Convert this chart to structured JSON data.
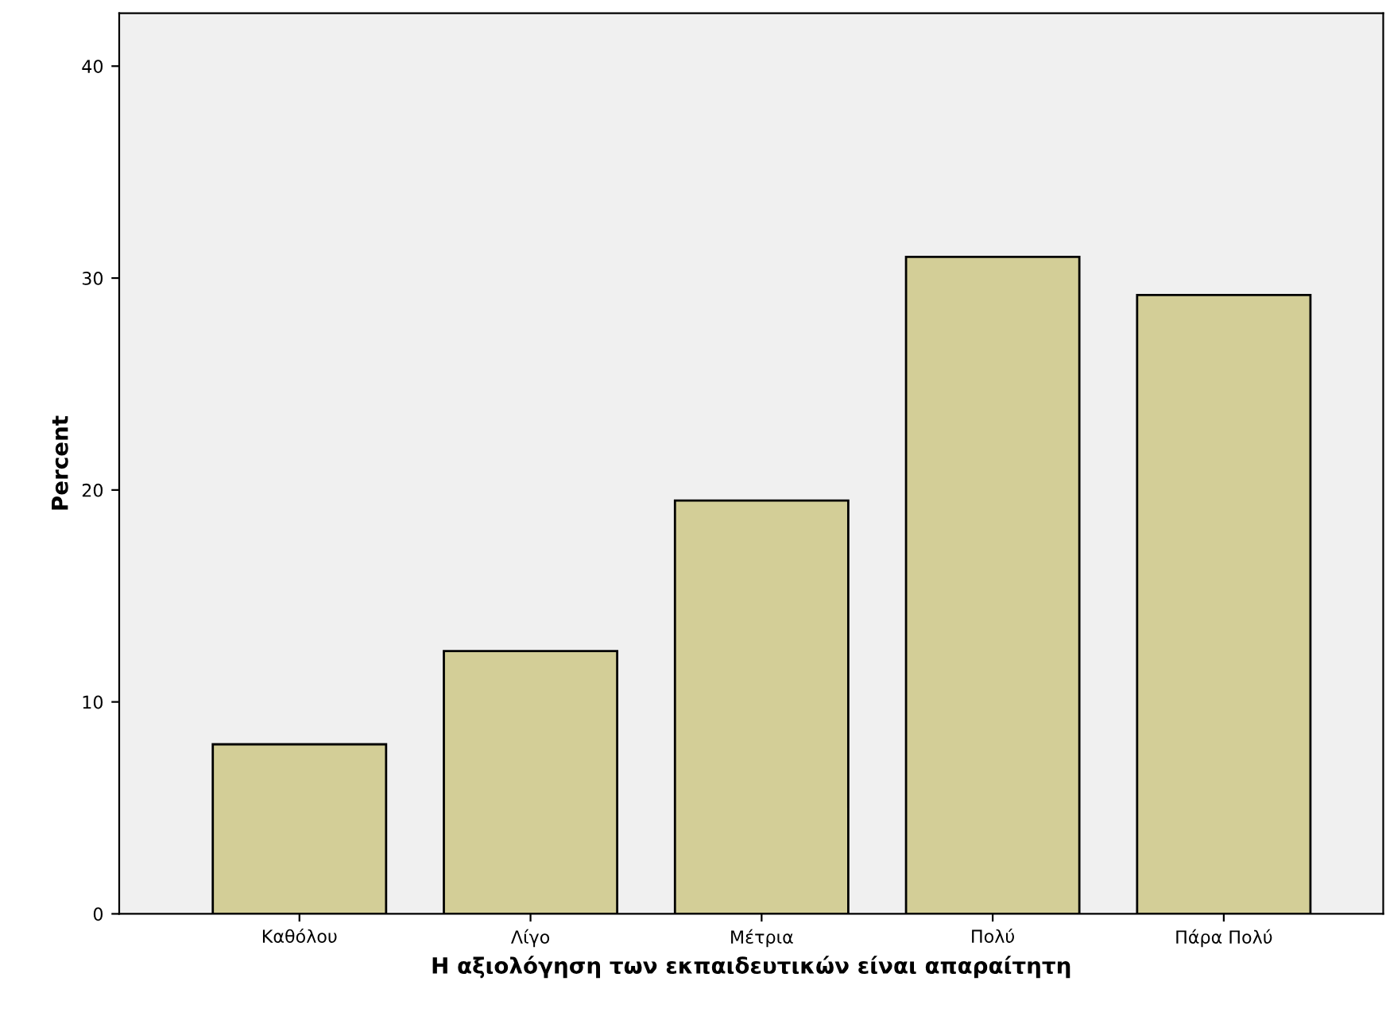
{
  "chart_data": {
    "type": "bar",
    "xlabel": "Η αξιολόγηση των εκπαιδευτικών είναι απαραίτητη",
    "ylabel": "Percent",
    "categories": [
      "Καθόλου",
      "Λίγο",
      "Μέτρια",
      "Πολύ",
      "Πάρα Πολύ"
    ],
    "values": [
      8.0,
      12.4,
      19.5,
      31.0,
      29.2
    ],
    "color": "#d3ce97",
    "ylim": [
      0,
      42.5
    ],
    "yticks": [
      0,
      10,
      20,
      30,
      40
    ],
    "grid": false,
    "legend": false
  }
}
